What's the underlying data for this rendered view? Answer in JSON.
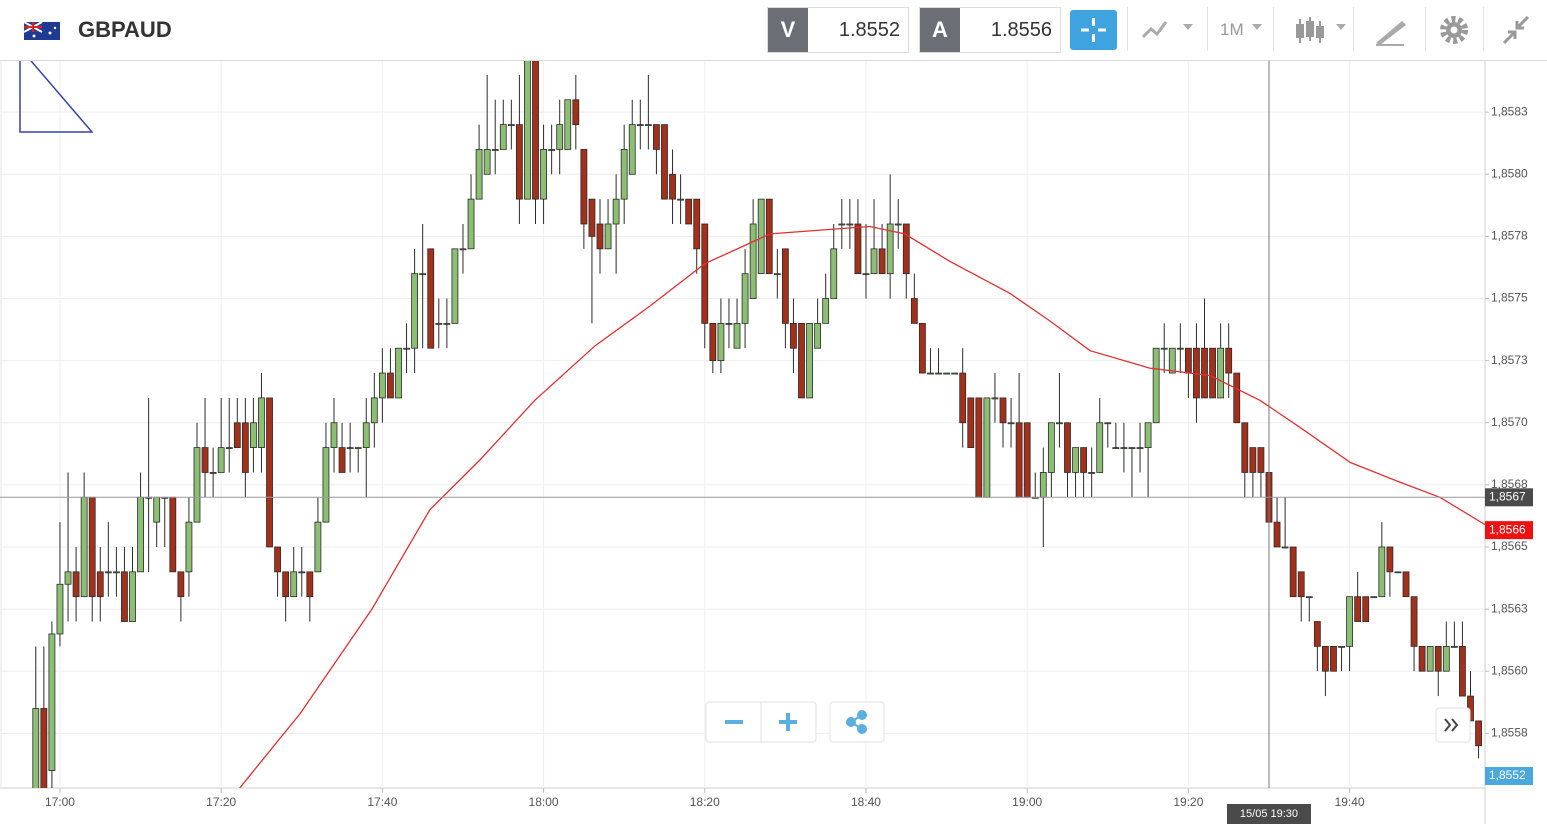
{
  "header": {
    "symbol": "GBPAUD",
    "sell_label": "V",
    "sell_price": "1.8552",
    "buy_label": "A",
    "buy_price": "1.8556",
    "timeframe": "1M"
  },
  "chart_data": {
    "type": "candlestick",
    "xlim": [
      1012.56,
      1196.8
    ],
    "ylim": [
      1.85553,
      1.85846
    ],
    "grid": true,
    "up_color": "#8cbf73",
    "down_color": "#a3301a",
    "outline_color": "#2b2b2b",
    "xticks": [
      {
        "value": 1020,
        "label": "17:00"
      },
      {
        "value": 1040,
        "label": "17:20"
      },
      {
        "value": 1060,
        "label": "17:40"
      },
      {
        "value": 1080,
        "label": "18:00"
      },
      {
        "value": 1100,
        "label": "18:20"
      },
      {
        "value": 1120,
        "label": "18:40"
      },
      {
        "value": 1140,
        "label": "19:00"
      },
      {
        "value": 1160,
        "label": "19:20"
      },
      {
        "value": 1180,
        "label": "19:40"
      }
    ],
    "yticks": [
      {
        "value": 1.85575,
        "label": "1,8558"
      },
      {
        "value": 1.856,
        "label": "1,8560"
      },
      {
        "value": 1.85625,
        "label": "1,8563"
      },
      {
        "value": 1.8565,
        "label": "1,8565"
      },
      {
        "value": 1.85675,
        "label": "1,8568"
      },
      {
        "value": 1.857,
        "label": "1,8570"
      },
      {
        "value": 1.85725,
        "label": "1,8573"
      },
      {
        "value": 1.8575,
        "label": "1,8575"
      },
      {
        "value": 1.85775,
        "label": "1,8578"
      },
      {
        "value": 1.858,
        "label": "1,8580"
      },
      {
        "value": 1.85825,
        "label": "1,8583"
      }
    ],
    "x": [
      1017,
      1018,
      1019,
      1020,
      1021,
      1022,
      1023,
      1024,
      1025,
      1026,
      1027,
      1028,
      1029,
      1030,
      1031,
      1032,
      1033,
      1034,
      1035,
      1036,
      1037,
      1038,
      1039,
      1040,
      1041,
      1042,
      1043,
      1044,
      1045,
      1046,
      1047,
      1048,
      1049,
      1050,
      1051,
      1052,
      1053,
      1054,
      1055,
      1056,
      1057,
      1058,
      1059,
      1060,
      1061,
      1062,
      1063,
      1064,
      1065,
      1066,
      1067,
      1068,
      1069,
      1070,
      1071,
      1072,
      1073,
      1074,
      1075,
      1076,
      1077,
      1078,
      1079,
      1080,
      1081,
      1082,
      1083,
      1084,
      1085,
      1086,
      1087,
      1088,
      1089,
      1090,
      1091,
      1092,
      1093,
      1094,
      1095,
      1096,
      1097,
      1098,
      1099,
      1100,
      1101,
      1102,
      1103,
      1104,
      1105,
      1106,
      1107,
      1108,
      1109,
      1110,
      1111,
      1112,
      1113,
      1114,
      1115,
      1116,
      1117,
      1118,
      1119,
      1120,
      1121,
      1122,
      1123,
      1124,
      1125,
      1126,
      1127,
      1128,
      1129,
      1130,
      1131,
      1132,
      1133,
      1134,
      1135,
      1136,
      1137,
      1138,
      1139,
      1140,
      1141,
      1142,
      1143,
      1144,
      1145,
      1146,
      1147,
      1148,
      1149,
      1150,
      1151,
      1152,
      1153,
      1154,
      1155,
      1156,
      1157,
      1158,
      1159,
      1160,
      1161,
      1162,
      1163,
      1164,
      1165,
      1166,
      1167,
      1168,
      1169,
      1170,
      1171,
      1172,
      1173,
      1174,
      1175,
      1176,
      1177,
      1178,
      1179,
      1180,
      1181,
      1182,
      1183,
      1184,
      1185,
      1186,
      1187,
      1188,
      1189,
      1190,
      1191,
      1192,
      1193,
      1194,
      1195,
      1196
    ],
    "ohlc": [
      [
        1.8555,
        1.8561,
        1.8553,
        1.85585
      ],
      [
        1.85585,
        1.8561,
        1.8553,
        1.8555
      ],
      [
        1.8556,
        1.8562,
        1.8555,
        1.85615
      ],
      [
        1.85615,
        1.8566,
        1.8561,
        1.85635
      ],
      [
        1.85635,
        1.8568,
        1.8562,
        1.8564
      ],
      [
        1.8564,
        1.8565,
        1.8562,
        1.8563
      ],
      [
        1.8563,
        1.8568,
        1.8563,
        1.8567
      ],
      [
        1.8567,
        1.8567,
        1.8562,
        1.8563
      ],
      [
        1.8564,
        1.8565,
        1.8562,
        1.8563
      ],
      [
        1.8564,
        1.8566,
        1.8563,
        1.8564
      ],
      [
        1.8564,
        1.8565,
        1.8563,
        1.8564
      ],
      [
        1.8564,
        1.8565,
        1.8562,
        1.8562
      ],
      [
        1.8562,
        1.8565,
        1.8562,
        1.8564
      ],
      [
        1.8564,
        1.8568,
        1.8564,
        1.8567
      ],
      [
        1.8567,
        1.8571,
        1.8564,
        1.8567
      ],
      [
        1.8566,
        1.8567,
        1.8565,
        1.8567
      ],
      [
        1.8567,
        1.8567,
        1.8565,
        1.8567
      ],
      [
        1.8567,
        1.8567,
        1.8564,
        1.8564
      ],
      [
        1.8564,
        1.8564,
        1.8562,
        1.8563
      ],
      [
        1.8564,
        1.8567,
        1.8563,
        1.8566
      ],
      [
        1.8566,
        1.857,
        1.8566,
        1.8569
      ],
      [
        1.8569,
        1.8571,
        1.8567,
        1.8568
      ],
      [
        1.8568,
        1.8569,
        1.8567,
        1.8568
      ],
      [
        1.8568,
        1.8571,
        1.8568,
        1.8569
      ],
      [
        1.8569,
        1.8571,
        1.8568,
        1.8569
      ],
      [
        1.857,
        1.8571,
        1.8569,
        1.8569
      ],
      [
        1.857,
        1.8571,
        1.8567,
        1.8568
      ],
      [
        1.8569,
        1.8571,
        1.8568,
        1.857
      ],
      [
        1.8569,
        1.8572,
        1.8568,
        1.8571
      ],
      [
        1.8571,
        1.8571,
        1.8565,
        1.8565
      ],
      [
        1.8565,
        1.8565,
        1.8563,
        1.8564
      ],
      [
        1.8564,
        1.8564,
        1.8562,
        1.8563
      ],
      [
        1.8563,
        1.8565,
        1.8563,
        1.8564
      ],
      [
        1.8564,
        1.8565,
        1.8563,
        1.8564
      ],
      [
        1.8564,
        1.8564,
        1.8562,
        1.8563
      ],
      [
        1.8564,
        1.8567,
        1.8564,
        1.8566
      ],
      [
        1.8566,
        1.857,
        1.8566,
        1.8569
      ],
      [
        1.8569,
        1.8571,
        1.8568,
        1.857
      ],
      [
        1.8569,
        1.857,
        1.8568,
        1.8568
      ],
      [
        1.8569,
        1.857,
        1.8568,
        1.8569
      ],
      [
        1.8569,
        1.8569,
        1.8568,
        1.8569
      ],
      [
        1.8569,
        1.8571,
        1.8567,
        1.857
      ],
      [
        1.857,
        1.8572,
        1.8569,
        1.8571
      ],
      [
        1.8571,
        1.8573,
        1.857,
        1.8572
      ],
      [
        1.8572,
        1.8573,
        1.8571,
        1.8571
      ],
      [
        1.8571,
        1.8573,
        1.8571,
        1.8573
      ],
      [
        1.8573,
        1.8574,
        1.8572,
        1.8573
      ],
      [
        1.8573,
        1.8577,
        1.8572,
        1.8576
      ],
      [
        1.8576,
        1.8578,
        1.8573,
        1.8576
      ],
      [
        1.8577,
        1.8577,
        1.8573,
        1.8573
      ],
      [
        1.8574,
        1.8575,
        1.8573,
        1.8574
      ],
      [
        1.8574,
        1.8575,
        1.8573,
        1.8574
      ],
      [
        1.8574,
        1.8577,
        1.8574,
        1.8577
      ],
      [
        1.8577,
        1.8578,
        1.8576,
        1.8577
      ],
      [
        1.8577,
        1.858,
        1.8577,
        1.8579
      ],
      [
        1.8579,
        1.8582,
        1.8579,
        1.8581
      ],
      [
        1.858,
        1.8584,
        1.858,
        1.8581
      ],
      [
        1.8581,
        1.8583,
        1.858,
        1.8581
      ],
      [
        1.8581,
        1.8583,
        1.8581,
        1.8582
      ],
      [
        1.8582,
        1.8583,
        1.8581,
        1.8582
      ],
      [
        1.8582,
        1.8584,
        1.8578,
        1.8579
      ],
      [
        1.8579,
        1.85855,
        1.8579,
        1.8585
      ],
      [
        1.8585,
        1.8585,
        1.8578,
        1.8579
      ],
      [
        1.8579,
        1.8582,
        1.8578,
        1.8581
      ],
      [
        1.8581,
        1.8582,
        1.858,
        1.8581
      ],
      [
        1.8581,
        1.8583,
        1.858,
        1.8582
      ],
      [
        1.8581,
        1.8583,
        1.8581,
        1.8583
      ],
      [
        1.8583,
        1.8584,
        1.8581,
        1.8582
      ],
      [
        1.8581,
        1.8581,
        1.8577,
        1.8578
      ],
      [
        1.8579,
        1.8579,
        1.8574,
        1.85775
      ],
      [
        1.8578,
        1.8579,
        1.8576,
        1.8577
      ],
      [
        1.8577,
        1.8579,
        1.8577,
        1.8578
      ],
      [
        1.8578,
        1.858,
        1.8576,
        1.8579
      ],
      [
        1.8579,
        1.8582,
        1.8578,
        1.8581
      ],
      [
        1.858,
        1.8583,
        1.858,
        1.8582
      ],
      [
        1.8582,
        1.8583,
        1.8581,
        1.8582
      ],
      [
        1.8582,
        1.8584,
        1.8581,
        1.8582
      ],
      [
        1.8582,
        1.8582,
        1.858,
        1.8581
      ],
      [
        1.8582,
        1.8582,
        1.8579,
        1.8579
      ],
      [
        1.858,
        1.8581,
        1.8578,
        1.8579
      ],
      [
        1.8579,
        1.858,
        1.8578,
        1.8579
      ],
      [
        1.8579,
        1.8579,
        1.8578,
        1.8578
      ],
      [
        1.8579,
        1.8579,
        1.8576,
        1.8577
      ],
      [
        1.8578,
        1.8578,
        1.8573,
        1.8574
      ],
      [
        1.8574,
        1.8574,
        1.8572,
        1.85725
      ],
      [
        1.85725,
        1.8575,
        1.8572,
        1.8574
      ],
      [
        1.8574,
        1.8575,
        1.8573,
        1.8574
      ],
      [
        1.8573,
        1.8575,
        1.8573,
        1.8574
      ],
      [
        1.8574,
        1.8577,
        1.8573,
        1.8576
      ],
      [
        1.8575,
        1.8579,
        1.8575,
        1.8578
      ],
      [
        1.8576,
        1.8579,
        1.8576,
        1.8579
      ],
      [
        1.8579,
        1.8579,
        1.8576,
        1.8576
      ],
      [
        1.8576,
        1.8577,
        1.8575,
        1.8576
      ],
      [
        1.8577,
        1.8577,
        1.8573,
        1.8574
      ],
      [
        1.8574,
        1.8575,
        1.8572,
        1.8573
      ],
      [
        1.8574,
        1.8574,
        1.8571,
        1.8571
      ],
      [
        1.8571,
        1.8574,
        1.8571,
        1.8574
      ],
      [
        1.8573,
        1.8575,
        1.8573,
        1.8574
      ],
      [
        1.8574,
        1.8576,
        1.8574,
        1.8575
      ],
      [
        1.8575,
        1.8578,
        1.8575,
        1.8577
      ],
      [
        1.8578,
        1.8579,
        1.8577,
        1.8578
      ],
      [
        1.8578,
        1.8579,
        1.8577,
        1.8578
      ],
      [
        1.8578,
        1.8579,
        1.8576,
        1.8576
      ],
      [
        1.8576,
        1.8578,
        1.8575,
        1.8576
      ],
      [
        1.8576,
        1.8579,
        1.8576,
        1.8577
      ],
      [
        1.8577,
        1.8578,
        1.8576,
        1.8576
      ],
      [
        1.8576,
        1.858,
        1.8575,
        1.8578
      ],
      [
        1.8578,
        1.8579,
        1.8577,
        1.8578
      ],
      [
        1.8578,
        1.8578,
        1.8575,
        1.8576
      ],
      [
        1.8575,
        1.8576,
        1.8574,
        1.8574
      ],
      [
        1.8574,
        1.8574,
        1.8572,
        1.8572
      ],
      [
        1.8572,
        1.8573,
        1.8572,
        1.8572
      ],
      [
        1.8572,
        1.8573,
        1.8572,
        1.8572
      ],
      [
        1.8572,
        1.8572,
        1.8572,
        1.8572
      ],
      [
        1.8572,
        1.8572,
        1.8572,
        1.8572
      ],
      [
        1.8572,
        1.8573,
        1.8569,
        1.857
      ],
      [
        1.8571,
        1.8571,
        1.8569,
        1.8569
      ],
      [
        1.8571,
        1.8571,
        1.8567,
        1.8567
      ],
      [
        1.8567,
        1.8571,
        1.8567,
        1.8571
      ],
      [
        1.8571,
        1.8572,
        1.857,
        1.8571
      ],
      [
        1.8571,
        1.8571,
        1.8569,
        1.857
      ],
      [
        1.857,
        1.8571,
        1.8569,
        1.857
      ],
      [
        1.857,
        1.8572,
        1.8567,
        1.8567
      ],
      [
        1.857,
        1.857,
        1.8567,
        1.8567
      ],
      [
        1.8567,
        1.8568,
        1.8567,
        1.8567
      ],
      [
        1.8567,
        1.8569,
        1.8565,
        1.8568
      ],
      [
        1.8568,
        1.857,
        1.8567,
        1.857
      ],
      [
        1.857,
        1.8572,
        1.8569,
        1.857
      ],
      [
        1.857,
        1.857,
        1.8567,
        1.8568
      ],
      [
        1.8568,
        1.8569,
        1.8567,
        1.8569
      ],
      [
        1.8569,
        1.8569,
        1.8567,
        1.8568
      ],
      [
        1.8568,
        1.8569,
        1.8567,
        1.8568
      ],
      [
        1.8568,
        1.8571,
        1.8568,
        1.857
      ],
      [
        1.857,
        1.857,
        1.8569,
        1.857
      ],
      [
        1.8569,
        1.857,
        1.8569,
        1.8569
      ],
      [
        1.8569,
        1.857,
        1.8568,
        1.8569
      ],
      [
        1.8569,
        1.8569,
        1.8567,
        1.8569
      ],
      [
        1.8569,
        1.857,
        1.8568,
        1.8569
      ],
      [
        1.8569,
        1.857,
        1.8567,
        1.857
      ],
      [
        1.857,
        1.8573,
        1.857,
        1.8573
      ],
      [
        1.8573,
        1.8574,
        1.8572,
        1.8573
      ],
      [
        1.8572,
        1.8573,
        1.8572,
        1.8573
      ],
      [
        1.8573,
        1.8574,
        1.8572,
        1.8573
      ],
      [
        1.8573,
        1.8573,
        1.8571,
        1.8572
      ],
      [
        1.8573,
        1.8574,
        1.857,
        1.8571
      ],
      [
        1.8573,
        1.8575,
        1.8571,
        1.8571
      ],
      [
        1.8573,
        1.8573,
        1.8571,
        1.8571
      ],
      [
        1.8571,
        1.8574,
        1.8571,
        1.8573
      ],
      [
        1.8573,
        1.8574,
        1.8571,
        1.8572
      ],
      [
        1.8572,
        1.8572,
        1.857,
        1.857
      ],
      [
        1.857,
        1.857,
        1.8567,
        1.8568
      ],
      [
        1.8569,
        1.8569,
        1.8567,
        1.8568
      ],
      [
        1.8569,
        1.8569,
        1.8567,
        1.8568
      ],
      [
        1.8568,
        1.8568,
        1.8566,
        1.8566
      ],
      [
        1.8566,
        1.8567,
        1.8565,
        1.8565
      ],
      [
        1.8565,
        1.8567,
        1.8565,
        1.8565
      ],
      [
        1.8565,
        1.8565,
        1.8563,
        1.8563
      ],
      [
        1.8564,
        1.8564,
        1.8562,
        1.8563
      ],
      [
        1.8563,
        1.8563,
        1.8562,
        1.8563
      ],
      [
        1.8562,
        1.8562,
        1.856,
        1.8561
      ],
      [
        1.8561,
        1.8561,
        1.8559,
        1.856
      ],
      [
        1.8561,
        1.8561,
        1.856,
        1.856
      ],
      [
        1.8561,
        1.8561,
        1.856,
        1.8561
      ],
      [
        1.8561,
        1.8563,
        1.856,
        1.8563
      ],
      [
        1.8563,
        1.8564,
        1.8562,
        1.8562
      ],
      [
        1.8563,
        1.8563,
        1.8562,
        1.8562
      ],
      [
        1.8563,
        1.8563,
        1.8563,
        1.8563
      ],
      [
        1.8563,
        1.8566,
        1.8563,
        1.8565
      ],
      [
        1.8565,
        1.8565,
        1.8563,
        1.8564
      ],
      [
        1.8564,
        1.8564,
        1.8564,
        1.8564
      ],
      [
        1.8564,
        1.8564,
        1.8563,
        1.8563
      ],
      [
        1.8563,
        1.8563,
        1.856,
        1.8561
      ],
      [
        1.8561,
        1.8561,
        1.856,
        1.856
      ],
      [
        1.856,
        1.8561,
        1.856,
        1.8561
      ],
      [
        1.8561,
        1.8561,
        1.8559,
        1.856
      ],
      [
        1.856,
        1.8562,
        1.856,
        1.8561
      ],
      [
        1.8561,
        1.8562,
        1.8561,
        1.8561
      ],
      [
        1.8561,
        1.8562,
        1.8559,
        1.8559
      ],
      [
        1.8559,
        1.856,
        1.8558,
        1.8558
      ],
      [
        1.8558,
        1.8558,
        1.85565,
        1.8557
      ]
    ],
    "ma": {
      "color": "#e03030",
      "x": [
        1042.3,
        1049.8,
        1058.7,
        1065.9,
        1072.1,
        1078.9,
        1086.4,
        1093.2,
        1100.0,
        1108.1,
        1116.2,
        1120.5,
        1124.8,
        1130.4,
        1137.9,
        1142.8,
        1147.8,
        1155.2,
        1162.7,
        1168.9,
        1173.9,
        1180.1,
        1186.3,
        1191.2,
        1196.8
      ],
      "values": [
        1.85553,
        1.85583,
        1.85625,
        1.85665,
        1.85685,
        1.85709,
        1.85731,
        1.85747,
        1.85764,
        1.85776,
        1.85778,
        1.85779,
        1.85776,
        1.85765,
        1.85752,
        1.85741,
        1.85729,
        1.85722,
        1.85719,
        1.85709,
        1.85698,
        1.85684,
        1.85676,
        1.8567,
        1.85659
      ]
    },
    "price_line": {
      "value": 1.8567,
      "label": "1,8567",
      "color": "#4a4a4a"
    },
    "ma_label": {
      "value": 1.8566,
      "label": "1,8566",
      "color": "#ee1111"
    },
    "bid_label": {
      "value": 1.8552,
      "label": "1,8552",
      "color": "#4aa8dc"
    },
    "crosshair": {
      "value": 1170,
      "label": "15/05 19:30",
      "color": "#4a4a4a"
    }
  }
}
